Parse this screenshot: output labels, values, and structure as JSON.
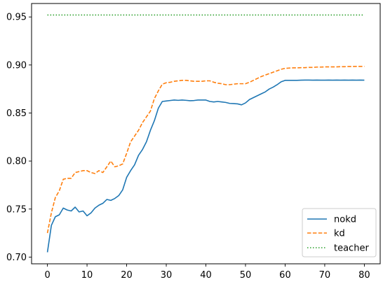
{
  "chart_data": {
    "type": "line",
    "title": "",
    "xlabel": "",
    "ylabel": "",
    "xlim": [
      -4,
      84
    ],
    "ylim": [
      0.693,
      0.964
    ],
    "xticks": [
      0,
      10,
      20,
      30,
      40,
      50,
      60,
      70,
      80
    ],
    "yticks": [
      0.7,
      0.75,
      0.8,
      0.85,
      0.9,
      0.95
    ],
    "xtick_labels": [
      "0",
      "10",
      "20",
      "30",
      "40",
      "50",
      "60",
      "70",
      "80"
    ],
    "ytick_labels": [
      "0.70",
      "0.75",
      "0.80",
      "0.85",
      "0.90",
      "0.95"
    ],
    "grid": false,
    "legend_position": "lower-right",
    "x": [
      0,
      1,
      2,
      3,
      4,
      5,
      6,
      7,
      8,
      9,
      10,
      11,
      12,
      13,
      14,
      15,
      16,
      17,
      18,
      19,
      20,
      21,
      22,
      23,
      24,
      25,
      26,
      27,
      28,
      29,
      30,
      31,
      32,
      33,
      34,
      35,
      36,
      37,
      38,
      39,
      40,
      41,
      42,
      43,
      44,
      45,
      46,
      47,
      48,
      49,
      50,
      51,
      52,
      53,
      54,
      55,
      56,
      57,
      58,
      59,
      60,
      61,
      62,
      63,
      64,
      65,
      66,
      67,
      68,
      69,
      70,
      71,
      72,
      73,
      74,
      75,
      76,
      77,
      78,
      79,
      80
    ],
    "series": [
      {
        "name": "nokd",
        "color": "#1f77b4",
        "style": "solid",
        "values": [
          0.705,
          0.733,
          0.742,
          0.744,
          0.751,
          0.749,
          0.748,
          0.752,
          0.747,
          0.748,
          0.743,
          0.746,
          0.751,
          0.754,
          0.756,
          0.76,
          0.759,
          0.761,
          0.764,
          0.77,
          0.783,
          0.79,
          0.796,
          0.806,
          0.812,
          0.82,
          0.832,
          0.842,
          0.855,
          0.862,
          0.8625,
          0.863,
          0.8635,
          0.8632,
          0.8635,
          0.8632,
          0.8628,
          0.863,
          0.8635,
          0.8635,
          0.8635,
          0.862,
          0.8615,
          0.862,
          0.8615,
          0.861,
          0.86,
          0.8598,
          0.8595,
          0.8585,
          0.8605,
          0.864,
          0.866,
          0.868,
          0.87,
          0.872,
          0.875,
          0.877,
          0.8795,
          0.8825,
          0.884,
          0.884,
          0.884,
          0.884,
          0.8842,
          0.8843,
          0.8843,
          0.8842,
          0.8843,
          0.8842,
          0.8842,
          0.8843,
          0.8842,
          0.8843,
          0.8842,
          0.8843,
          0.8842,
          0.8843,
          0.8842,
          0.8843,
          0.8842
        ]
      },
      {
        "name": "kd",
        "color": "#ff7f0e",
        "style": "dashed",
        "values": [
          0.725,
          0.746,
          0.762,
          0.769,
          0.781,
          0.782,
          0.782,
          0.788,
          0.789,
          0.79,
          0.79,
          0.788,
          0.787,
          0.79,
          0.788,
          0.794,
          0.8,
          0.794,
          0.795,
          0.797,
          0.808,
          0.82,
          0.826,
          0.832,
          0.84,
          0.846,
          0.852,
          0.865,
          0.873,
          0.88,
          0.8815,
          0.882,
          0.883,
          0.8835,
          0.884,
          0.884,
          0.8835,
          0.883,
          0.883,
          0.883,
          0.8835,
          0.8835,
          0.882,
          0.881,
          0.8805,
          0.8795,
          0.8795,
          0.88,
          0.8805,
          0.8805,
          0.8805,
          0.882,
          0.884,
          0.886,
          0.888,
          0.8895,
          0.891,
          0.8925,
          0.894,
          0.8955,
          0.8965,
          0.8968,
          0.897,
          0.897,
          0.8972,
          0.8972,
          0.8975,
          0.8975,
          0.8978,
          0.8978,
          0.898,
          0.898,
          0.898,
          0.898,
          0.8982,
          0.8982,
          0.8984,
          0.8984,
          0.8985,
          0.8985,
          0.8985
        ]
      },
      {
        "name": "teacher",
        "color": "#2ca02c",
        "style": "dotted",
        "values": [
          0.952,
          0.952,
          0.952,
          0.952,
          0.952,
          0.952,
          0.952,
          0.952,
          0.952,
          0.952,
          0.952,
          0.952,
          0.952,
          0.952,
          0.952,
          0.952,
          0.952,
          0.952,
          0.952,
          0.952,
          0.952,
          0.952,
          0.952,
          0.952,
          0.952,
          0.952,
          0.952,
          0.952,
          0.952,
          0.952,
          0.952,
          0.952,
          0.952,
          0.952,
          0.952,
          0.952,
          0.952,
          0.952,
          0.952,
          0.952,
          0.952,
          0.952,
          0.952,
          0.952,
          0.952,
          0.952,
          0.952,
          0.952,
          0.952,
          0.952,
          0.952,
          0.952,
          0.952,
          0.952,
          0.952,
          0.952,
          0.952,
          0.952,
          0.952,
          0.952,
          0.952,
          0.952,
          0.952,
          0.952,
          0.952,
          0.952,
          0.952,
          0.952,
          0.952,
          0.952,
          0.952,
          0.952,
          0.952,
          0.952,
          0.952,
          0.952,
          0.952,
          0.952,
          0.952,
          0.952,
          0.952
        ]
      }
    ]
  }
}
